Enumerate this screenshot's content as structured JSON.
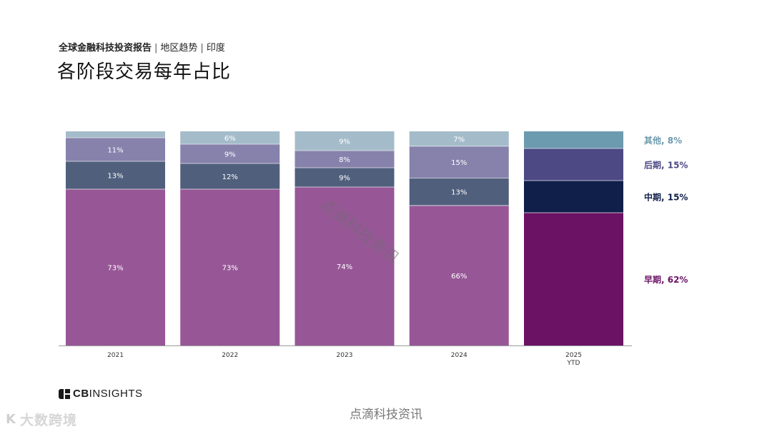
{
  "header": {
    "report_name": "全球金融科技投资报告",
    "section": "地区趋势",
    "region": "印度",
    "separator": "|",
    "title": "各阶段交易每年占比"
  },
  "chart_data": {
    "type": "bar",
    "stacked": true,
    "normalized": true,
    "categories": [
      [
        "2021"
      ],
      [
        "2022"
      ],
      [
        "2023"
      ],
      [
        "2024"
      ],
      [
        "2025",
        "YTD"
      ]
    ],
    "series": [
      {
        "name": "早期",
        "legend_label": "早期, 62%",
        "values": [
          73,
          73,
          74,
          66,
          62
        ],
        "labels": [
          "73%",
          "73%",
          "74%",
          "66%",
          ""
        ],
        "colors": [
          "#975797",
          "#975797",
          "#975797",
          "#975797",
          "#6c1265"
        ],
        "label_color": "#ffffff"
      },
      {
        "name": "中期",
        "legend_label": "中期, 15%",
        "values": [
          13,
          12,
          9,
          13,
          15
        ],
        "labels": [
          "13%",
          "12%",
          "9%",
          "13%",
          ""
        ],
        "colors": [
          "#505f7c",
          "#505f7c",
          "#505f7c",
          "#505f7c",
          "#0f1f4a"
        ],
        "label_color": "#ffffff"
      },
      {
        "name": "后期",
        "legend_label": "后期, 15%",
        "values": [
          11,
          9,
          8,
          15,
          15
        ],
        "labels": [
          "11%",
          "9%",
          "8%",
          "15%",
          ""
        ],
        "colors": [
          "#8682ac",
          "#8682ac",
          "#8682ac",
          "#8682ac",
          "#4c4985"
        ],
        "label_color": "#ffffff"
      },
      {
        "name": "其他",
        "legend_label": "其他, 8%",
        "values": [
          3,
          6,
          9,
          7,
          8
        ],
        "labels": [
          "",
          "6%",
          "9%",
          "7%",
          ""
        ],
        "colors": [
          "#a4bcca",
          "#a4bcca",
          "#a4bcca",
          "#a4bcca",
          "#6c9aae"
        ],
        "label_color": "#ffffff"
      }
    ],
    "legend_colors": [
      "#6c1265",
      "#0f1f4a",
      "#4c4985",
      "#6c9aae"
    ],
    "ylim": [
      0,
      100
    ],
    "grid": false,
    "legend_position": "right"
  },
  "brand": {
    "logo_bold": "CB",
    "logo_rest": "INSIGHTS"
  },
  "watermarks": {
    "diagonal": "点滴科技资讯",
    "footer": "点滴科技资讯",
    "corner": "大数跨境",
    "corner_icon": "K"
  }
}
